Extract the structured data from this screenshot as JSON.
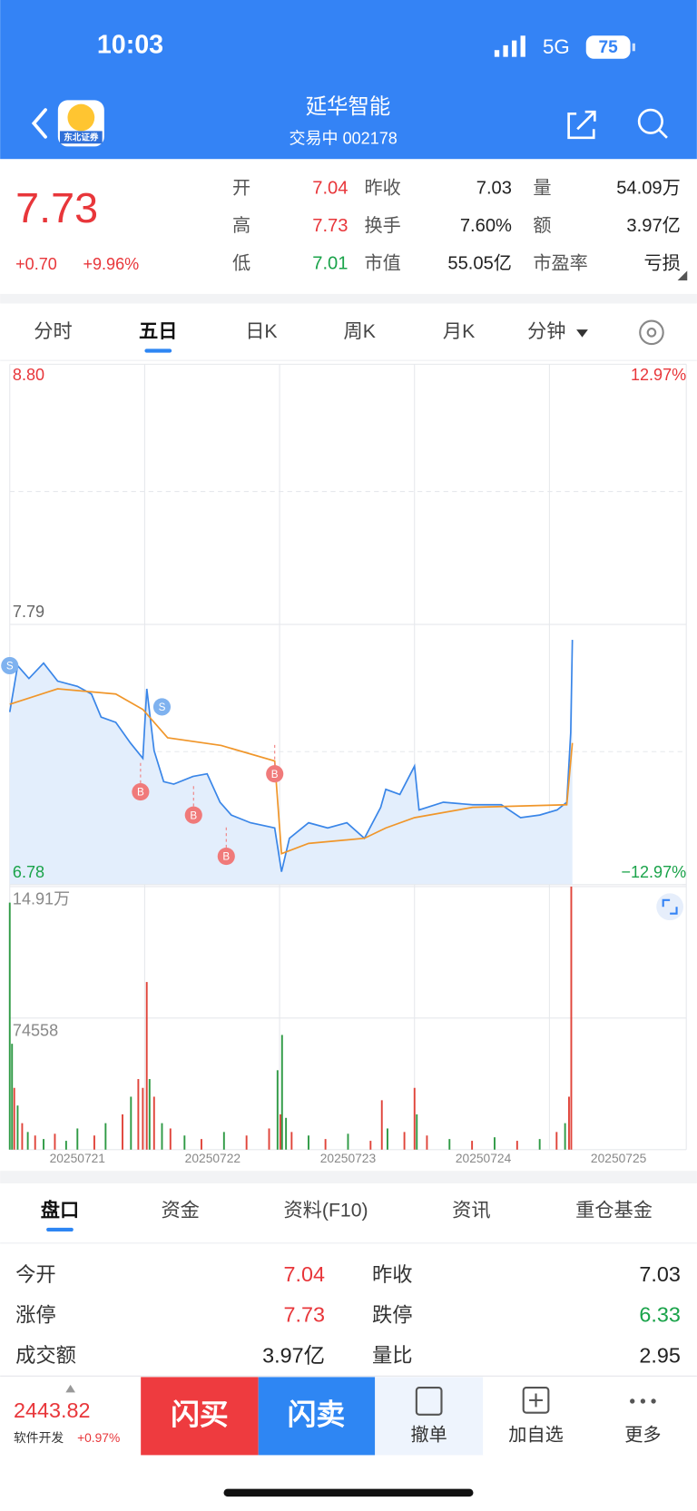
{
  "status_bar": {
    "time": "10:03",
    "network": "5G",
    "battery": "75"
  },
  "header": {
    "title": "延华智能",
    "subtitle": "交易中 002178",
    "logo_text": "东北证券"
  },
  "quote": {
    "price": "7.73",
    "change": "+0.70",
    "change_pct": "+9.96%",
    "color": "#e8363a",
    "fields": [
      [
        {
          "label": "开",
          "value": "7.04",
          "color": "#e8363a"
        },
        {
          "label": "昨收",
          "value": "7.03",
          "color": "#222222"
        },
        {
          "label": "量",
          "value": "54.09万",
          "color": "#222222"
        }
      ],
      [
        {
          "label": "高",
          "value": "7.73",
          "color": "#e8363a"
        },
        {
          "label": "换手",
          "value": "7.60%",
          "color": "#222222"
        },
        {
          "label": "额",
          "value": "3.97亿",
          "color": "#222222"
        }
      ],
      [
        {
          "label": "低",
          "value": "7.01",
          "color": "#1aa34a"
        },
        {
          "label": "市值",
          "value": "55.05亿",
          "color": "#222222"
        },
        {
          "label": "市盈率",
          "value": "亏损",
          "color": "#222222"
        }
      ]
    ]
  },
  "tabs": {
    "items": [
      "分时",
      "五日",
      "日K",
      "周K",
      "月K",
      "分钟"
    ],
    "active": 1
  },
  "chart": {
    "type": "line",
    "xlim": [
      0,
      1200
    ],
    "ylim": [
      6.78,
      8.8
    ],
    "yticks": [
      {
        "value": 8.8,
        "label": "8.80"
      },
      7.79,
      6.78
    ],
    "y2lim": [
      -12.97,
      12.97
    ],
    "y2ticks": [
      {
        "value": 12.97,
        "label": "12.97%"
      },
      {
        "value": -12.97,
        "label": "−12.97%"
      }
    ],
    "days": [
      "20250721",
      "20250722",
      "20250723",
      "20250724",
      "20250725"
    ],
    "series": [
      {
        "color": "#3a86e8",
        "x": [
          0,
          14,
          34,
          60,
          85,
          120,
          145,
          162,
          188,
          214,
          236,
          243,
          256,
          273,
          291,
          325,
          350,
          373,
          393,
          427,
          470,
          482,
          496,
          530,
          564,
          598,
          629,
          658,
          667,
          692,
          718,
          726,
          769,
          821,
          872,
          906,
          940,
          971,
          988,
          995,
          998
        ],
        "values": [
          7.45,
          7.63,
          7.58,
          7.64,
          7.57,
          7.55,
          7.52,
          7.43,
          7.41,
          7.33,
          7.27,
          7.54,
          7.3,
          7.18,
          7.17,
          7.2,
          7.21,
          7.1,
          7.05,
          7.02,
          7.0,
          6.83,
          6.96,
          7.02,
          7.0,
          7.02,
          6.96,
          7.08,
          7.15,
          7.13,
          7.24,
          7.07,
          7.1,
          7.09,
          7.09,
          7.04,
          7.05,
          7.07,
          7.1,
          7.37,
          7.73
        ]
      },
      {
        "color": "#f0962a",
        "x": [
          0,
          85,
          188,
          236,
          280,
          375,
          470,
          482,
          530,
          629,
          667,
          718,
          821,
          988,
          998
        ],
        "values": [
          7.48,
          7.54,
          7.52,
          7.46,
          7.35,
          7.32,
          7.26,
          6.9,
          6.94,
          6.96,
          7.0,
          7.04,
          7.08,
          7.09,
          7.33
        ]
      }
    ],
    "markers": [
      {
        "label": "S",
        "x": 0,
        "price": 7.63
      },
      {
        "label": "S",
        "x": 270,
        "price": 7.47
      },
      {
        "label": "B",
        "x": 232,
        "price": 7.14
      },
      {
        "label": "B",
        "x": 326,
        "price": 7.05
      },
      {
        "label": "B",
        "x": 384,
        "price": 6.89
      },
      {
        "label": "B",
        "x": 470,
        "price": 7.21
      }
    ]
  },
  "volume": {
    "type": "bar",
    "ylim": [
      0,
      149100
    ],
    "yticks": [
      {
        "value": 149100,
        "label": "14.91万"
      },
      74558
    ],
    "x": [
      0,
      4,
      8,
      14,
      22,
      32,
      45,
      60,
      80,
      100,
      120,
      150,
      170,
      200,
      215,
      228,
      236,
      243,
      248,
      256,
      270,
      285,
      310,
      340,
      380,
      420,
      460,
      475,
      480,
      483,
      490,
      500,
      530,
      560,
      600,
      640,
      660,
      670,
      700,
      718,
      722,
      740,
      780,
      820,
      860,
      900,
      940,
      970,
      985,
      992,
      996
    ],
    "values": [
      140000,
      60000,
      35000,
      25000,
      15000,
      10000,
      8000,
      6000,
      9000,
      5000,
      12000,
      8000,
      15000,
      20000,
      30000,
      40000,
      35000,
      95000,
      40000,
      30000,
      15000,
      12000,
      8000,
      6000,
      10000,
      8000,
      12000,
      45000,
      20000,
      65000,
      18000,
      10000,
      8000,
      6000,
      9000,
      5000,
      28000,
      12000,
      10000,
      35000,
      20000,
      8000,
      6000,
      5000,
      7000,
      5000,
      6000,
      10000,
      15000,
      30000,
      149100
    ],
    "colors": [
      "#2f9a45",
      "#2f9a45",
      "#e0443a",
      "#2f9a45",
      "#e0443a",
      "#2f9a45",
      "#e0443a",
      "#2f9a45",
      "#e0443a",
      "#2f9a45",
      "#2f9a45",
      "#e0443a",
      "#2f9a45",
      "#e0443a",
      "#2f9a45",
      "#e0443a",
      "#e0443a",
      "#e0443a",
      "#2f9a45",
      "#e0443a",
      "#2f9a45",
      "#e0443a",
      "#2f9a45",
      "#e0443a",
      "#2f9a45",
      "#e0443a",
      "#e0443a",
      "#2f9a45",
      "#e0443a",
      "#2f9a45",
      "#2f9a45",
      "#e0443a",
      "#2f9a45",
      "#e0443a",
      "#2f9a45",
      "#e0443a",
      "#e0443a",
      "#2f9a45",
      "#e0443a",
      "#e0443a",
      "#2f9a45",
      "#e0443a",
      "#2f9a45",
      "#e0443a",
      "#2f9a45",
      "#e0443a",
      "#2f9a45",
      "#e0443a",
      "#2f9a45",
      "#e0443a",
      "#e0443a"
    ]
  },
  "detail_tabs": {
    "items": [
      "盘口",
      "资金",
      "资料(F10)",
      "资讯",
      "重仓基金"
    ],
    "active": 0
  },
  "detail_rows": [
    [
      {
        "label": "今开",
        "value": "7.04",
        "color": "#e8363a"
      },
      {
        "label": "昨收",
        "value": "7.03",
        "color": "#222222"
      }
    ],
    [
      {
        "label": "涨停",
        "value": "7.73",
        "color": "#e8363a"
      },
      {
        "label": "跌停",
        "value": "6.33",
        "color": "#1aa34a"
      }
    ],
    [
      {
        "label": "成交额",
        "value": "3.97亿",
        "color": "#222222"
      },
      {
        "label": "量比",
        "value": "2.95",
        "color": "#222222"
      }
    ]
  ],
  "toolbar": {
    "index_value": "2443.82",
    "index_name": "软件开发",
    "index_change": "+0.97%",
    "buy": "闪买",
    "sell": "闪卖",
    "cancel": "撤单",
    "watch": "加自选",
    "more": "更多"
  }
}
